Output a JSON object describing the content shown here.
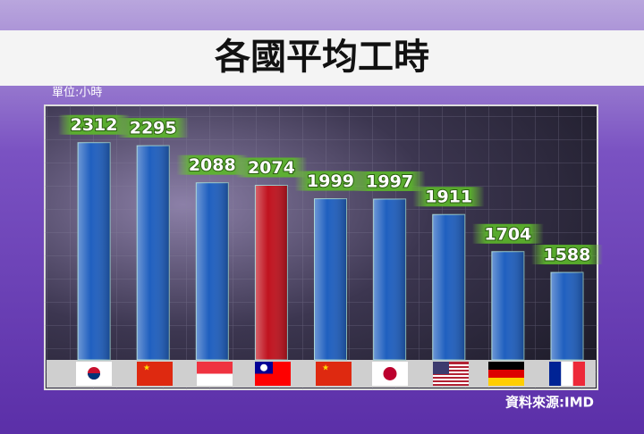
{
  "chart_data": {
    "type": "bar",
    "title": "各國平均工時",
    "subtitle": "單位:小時",
    "source": "資料來源:IMD",
    "categories": [
      null,
      null,
      null,
      null,
      null,
      null,
      null,
      null,
      null
    ],
    "values": [
      2312,
      2295,
      2088,
      2074,
      1999,
      1997,
      1911,
      1704,
      1588
    ],
    "colors": [
      "#1f5fbf",
      "#1f5fbf",
      "#1f5fbf",
      "#c0121e",
      "#1f5fbf",
      "#1f5fbf",
      "#1f5fbf",
      "#1f5fbf",
      "#1f5fbf"
    ],
    "ylim": [
      1100,
      2500
    ]
  }
}
